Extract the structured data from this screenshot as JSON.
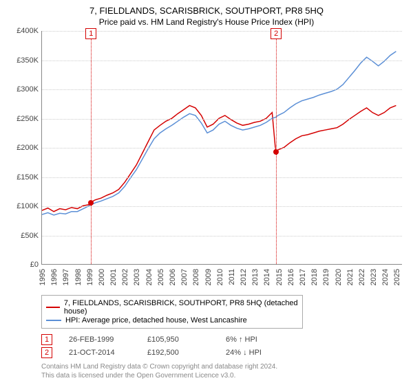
{
  "chart": {
    "type": "line",
    "title": "7, FIELDLANDS, SCARISBRICK, SOUTHPORT, PR8 5HQ",
    "subtitle": "Price paid vs. HM Land Registry's House Price Index (HPI)",
    "title_fontsize": 13,
    "subtitle_fontsize": 12,
    "background_color": "#ffffff",
    "grid_color": "#cccccc",
    "axis_color": "#888888",
    "label_color": "#444444",
    "label_fontsize": 11,
    "y": {
      "min": 0,
      "max": 400000,
      "ticks": [
        0,
        50000,
        100000,
        150000,
        200000,
        250000,
        300000,
        350000,
        400000
      ],
      "tick_labels": [
        "£0",
        "£50K",
        "£100K",
        "£150K",
        "£200K",
        "£250K",
        "£300K",
        "£350K",
        "£400K"
      ]
    },
    "x": {
      "min": 1995,
      "max": 2025.5,
      "ticks": [
        1995,
        1996,
        1997,
        1998,
        1999,
        2000,
        2001,
        2002,
        2003,
        2004,
        2005,
        2006,
        2007,
        2008,
        2009,
        2010,
        2011,
        2012,
        2013,
        2014,
        2015,
        2016,
        2017,
        2018,
        2019,
        2020,
        2021,
        2022,
        2023,
        2024,
        2025
      ],
      "tick_labels": [
        "1995",
        "1996",
        "1997",
        "1998",
        "1999",
        "2000",
        "2001",
        "2002",
        "2003",
        "2004",
        "2005",
        "2006",
        "2007",
        "2008",
        "2009",
        "2010",
        "2011",
        "2012",
        "2013",
        "2014",
        "2015",
        "2016",
        "2017",
        "2018",
        "2019",
        "2020",
        "2021",
        "2022",
        "2023",
        "2024",
        "2025"
      ]
    },
    "series": [
      {
        "name": "7, FIELDLANDS, SCARISBRICK, SOUTHPORT, PR8 5HQ (detached house)",
        "color": "#d40000",
        "line_width": 1.5,
        "points": [
          [
            1995.0,
            92000
          ],
          [
            1995.5,
            96000
          ],
          [
            1996.0,
            90000
          ],
          [
            1996.5,
            95000
          ],
          [
            1997.0,
            93000
          ],
          [
            1997.5,
            97000
          ],
          [
            1998.0,
            95000
          ],
          [
            1998.5,
            100000
          ],
          [
            1999.0,
            102000
          ],
          [
            1999.15,
            105950
          ],
          [
            1999.5,
            110000
          ],
          [
            2000.0,
            113000
          ],
          [
            2000.5,
            118000
          ],
          [
            2001.0,
            122000
          ],
          [
            2001.5,
            128000
          ],
          [
            2002.0,
            140000
          ],
          [
            2002.5,
            155000
          ],
          [
            2003.0,
            170000
          ],
          [
            2003.5,
            190000
          ],
          [
            2004.0,
            210000
          ],
          [
            2004.5,
            230000
          ],
          [
            2005.0,
            238000
          ],
          [
            2005.5,
            245000
          ],
          [
            2006.0,
            250000
          ],
          [
            2006.5,
            258000
          ],
          [
            2007.0,
            265000
          ],
          [
            2007.5,
            272000
          ],
          [
            2008.0,
            268000
          ],
          [
            2008.5,
            255000
          ],
          [
            2009.0,
            235000
          ],
          [
            2009.5,
            240000
          ],
          [
            2010.0,
            250000
          ],
          [
            2010.5,
            255000
          ],
          [
            2011.0,
            248000
          ],
          [
            2011.5,
            242000
          ],
          [
            2012.0,
            238000
          ],
          [
            2012.5,
            240000
          ],
          [
            2013.0,
            243000
          ],
          [
            2013.5,
            245000
          ],
          [
            2014.0,
            250000
          ],
          [
            2014.5,
            260000
          ],
          [
            2014.8,
            192500
          ],
          [
            2015.0,
            196000
          ],
          [
            2015.5,
            200000
          ],
          [
            2016.0,
            208000
          ],
          [
            2016.5,
            215000
          ],
          [
            2017.0,
            220000
          ],
          [
            2017.5,
            222000
          ],
          [
            2018.0,
            225000
          ],
          [
            2018.5,
            228000
          ],
          [
            2019.0,
            230000
          ],
          [
            2019.5,
            232000
          ],
          [
            2020.0,
            234000
          ],
          [
            2020.5,
            240000
          ],
          [
            2021.0,
            248000
          ],
          [
            2021.5,
            255000
          ],
          [
            2022.0,
            262000
          ],
          [
            2022.5,
            268000
          ],
          [
            2023.0,
            260000
          ],
          [
            2023.5,
            255000
          ],
          [
            2024.0,
            260000
          ],
          [
            2024.5,
            268000
          ],
          [
            2025.0,
            272000
          ]
        ]
      },
      {
        "name": "HPI: Average price, detached house, West Lancashire",
        "color": "#5b8fd6",
        "line_width": 1.5,
        "points": [
          [
            1995.0,
            85000
          ],
          [
            1995.5,
            88000
          ],
          [
            1996.0,
            84000
          ],
          [
            1996.5,
            87000
          ],
          [
            1997.0,
            86000
          ],
          [
            1997.5,
            90000
          ],
          [
            1998.0,
            90000
          ],
          [
            1998.5,
            95000
          ],
          [
            1999.0,
            100000
          ],
          [
            1999.5,
            105000
          ],
          [
            2000.0,
            108000
          ],
          [
            2000.5,
            112000
          ],
          [
            2001.0,
            116000
          ],
          [
            2001.5,
            122000
          ],
          [
            2002.0,
            133000
          ],
          [
            2002.5,
            148000
          ],
          [
            2003.0,
            162000
          ],
          [
            2003.5,
            180000
          ],
          [
            2004.0,
            198000
          ],
          [
            2004.5,
            215000
          ],
          [
            2005.0,
            225000
          ],
          [
            2005.5,
            232000
          ],
          [
            2006.0,
            238000
          ],
          [
            2006.5,
            245000
          ],
          [
            2007.0,
            252000
          ],
          [
            2007.5,
            258000
          ],
          [
            2008.0,
            255000
          ],
          [
            2008.5,
            242000
          ],
          [
            2009.0,
            225000
          ],
          [
            2009.5,
            230000
          ],
          [
            2010.0,
            240000
          ],
          [
            2010.5,
            245000
          ],
          [
            2011.0,
            238000
          ],
          [
            2011.5,
            233000
          ],
          [
            2012.0,
            230000
          ],
          [
            2012.5,
            232000
          ],
          [
            2013.0,
            235000
          ],
          [
            2013.5,
            238000
          ],
          [
            2014.0,
            243000
          ],
          [
            2014.5,
            250000
          ],
          [
            2014.8,
            252000
          ],
          [
            2015.0,
            255000
          ],
          [
            2015.5,
            260000
          ],
          [
            2016.0,
            268000
          ],
          [
            2016.5,
            275000
          ],
          [
            2017.0,
            280000
          ],
          [
            2017.5,
            283000
          ],
          [
            2018.0,
            286000
          ],
          [
            2018.5,
            290000
          ],
          [
            2019.0,
            293000
          ],
          [
            2019.5,
            296000
          ],
          [
            2020.0,
            300000
          ],
          [
            2020.5,
            308000
          ],
          [
            2021.0,
            320000
          ],
          [
            2021.5,
            332000
          ],
          [
            2022.0,
            345000
          ],
          [
            2022.5,
            355000
          ],
          [
            2023.0,
            348000
          ],
          [
            2023.5,
            340000
          ],
          [
            2024.0,
            348000
          ],
          [
            2024.5,
            358000
          ],
          [
            2025.0,
            365000
          ]
        ]
      }
    ],
    "event_lines": [
      {
        "label": "1",
        "x": 1999.15,
        "color": "#d40000",
        "marker_y": 105950
      },
      {
        "label": "2",
        "x": 2014.8,
        "color": "#d40000",
        "marker_y": 192500
      }
    ]
  },
  "legend": {
    "border_color": "#aaaaaa",
    "items": [
      {
        "color": "#d40000",
        "label": "7, FIELDLANDS, SCARISBRICK, SOUTHPORT, PR8 5HQ (detached house)"
      },
      {
        "color": "#5b8fd6",
        "label": "HPI: Average price, detached house, West Lancashire"
      }
    ]
  },
  "events": [
    {
      "key": "1",
      "key_color": "#d40000",
      "date": "26-FEB-1999",
      "price": "£105,950",
      "delta_pct": "6%",
      "delta_dir": "up",
      "delta_label": "HPI"
    },
    {
      "key": "2",
      "key_color": "#d40000",
      "date": "21-OCT-2014",
      "price": "£192,500",
      "delta_pct": "24%",
      "delta_dir": "down",
      "delta_label": "HPI"
    }
  ],
  "footnote": {
    "line1": "Contains HM Land Registry data © Crown copyright and database right 2024.",
    "line2": "This data is licensed under the Open Government Licence v3.0.",
    "color": "#888888"
  }
}
